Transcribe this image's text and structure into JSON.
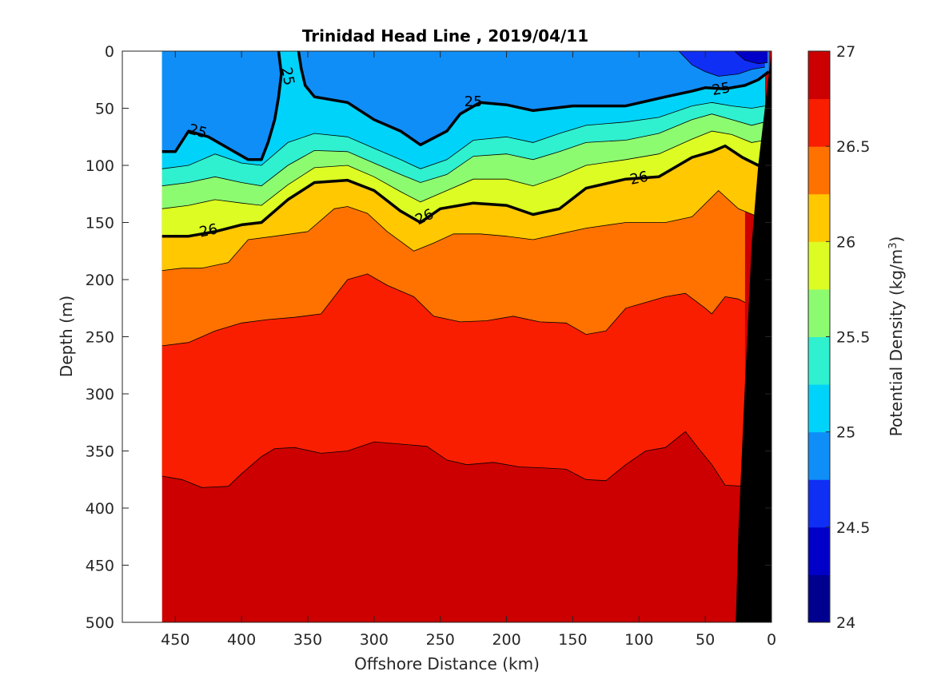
{
  "chart_data": {
    "type": "contour",
    "title": "Trinidad Head Line , 2019/04/11",
    "xlabel": "Offshore Distance (km)",
    "ylabel": "Depth (m)",
    "colorbar_label": "Potential Density (kg/m",
    "colorbar_label_sup": "3",
    "colorbar_label_end": ")",
    "x_reversed": true,
    "y_reversed": true,
    "xlim": [
      0,
      490
    ],
    "ylim": [
      0,
      500
    ],
    "x_ticks": [
      450,
      400,
      350,
      300,
      250,
      200,
      150,
      100,
      50,
      0
    ],
    "y_ticks": [
      0,
      50,
      100,
      150,
      200,
      250,
      300,
      350,
      400,
      450,
      500
    ],
    "colorbar_range": [
      24,
      27
    ],
    "colorbar_ticks": [
      24,
      24.5,
      25,
      25.5,
      26,
      26.5,
      27
    ],
    "contour_levels": [
      24.25,
      24.5,
      24.75,
      25,
      25.25,
      25.5,
      25.75,
      26,
      26.25,
      26.5,
      26.75
    ],
    "level_colors": [
      "#00008f",
      "#0000c8",
      "#0f2ff4",
      "#0f8ef8",
      "#00d3f9",
      "#2ff0cf",
      "#8dfb70",
      "#dcfc23",
      "#ffc800",
      "#ff7200",
      "#f91e00",
      "#cc0000"
    ],
    "bathymetry_color": "#000000",
    "section_x_range_km": [
      0,
      460
    ],
    "labeled_isopycnals": [
      {
        "value": 25,
        "label": "25",
        "depth_profile": [
          [
            460,
            88
          ],
          [
            450,
            88
          ],
          [
            440,
            70
          ],
          [
            425,
            75
          ],
          [
            410,
            85
          ],
          [
            395,
            95
          ],
          [
            385,
            95
          ],
          [
            380,
            80
          ],
          [
            375,
            60
          ],
          [
            372,
            40
          ],
          [
            370,
            20
          ],
          [
            372,
            0
          ]
        ]
      },
      {
        "value": 25,
        "label": "25",
        "depth_profile": [
          [
            357,
            0
          ],
          [
            355,
            15
          ],
          [
            352,
            30
          ],
          [
            345,
            40
          ],
          [
            320,
            45
          ],
          [
            300,
            60
          ],
          [
            280,
            70
          ],
          [
            265,
            82
          ],
          [
            245,
            70
          ],
          [
            235,
            55
          ],
          [
            220,
            45
          ],
          [
            200,
            47
          ],
          [
            180,
            52
          ],
          [
            150,
            48
          ],
          [
            110,
            48
          ],
          [
            80,
            40
          ],
          [
            60,
            35
          ],
          [
            50,
            32
          ],
          [
            35,
            33
          ],
          [
            20,
            30
          ],
          [
            10,
            25
          ],
          [
            2,
            18
          ]
        ]
      },
      {
        "value": 26,
        "label": "26",
        "depth_profile": [
          [
            460,
            162
          ],
          [
            440,
            162
          ],
          [
            420,
            158
          ],
          [
            400,
            152
          ],
          [
            385,
            150
          ],
          [
            365,
            130
          ],
          [
            345,
            115
          ],
          [
            320,
            113
          ],
          [
            300,
            122
          ],
          [
            280,
            140
          ],
          [
            265,
            150
          ],
          [
            250,
            138
          ],
          [
            225,
            133
          ],
          [
            200,
            135
          ],
          [
            180,
            143
          ],
          [
            160,
            138
          ],
          [
            140,
            120
          ],
          [
            110,
            112
          ],
          [
            85,
            110
          ],
          [
            60,
            93
          ],
          [
            45,
            88
          ],
          [
            35,
            83
          ],
          [
            22,
            93
          ],
          [
            10,
            100
          ],
          [
            5,
            96
          ]
        ]
      }
    ],
    "isopycnal_depth_profiles": [
      {
        "value": 24.75,
        "depth_profile": [
          [
            70,
            0
          ],
          [
            60,
            12
          ],
          [
            50,
            18
          ],
          [
            40,
            22
          ],
          [
            25,
            20
          ],
          [
            15,
            16
          ],
          [
            5,
            14
          ]
        ]
      },
      {
        "value": 24.5,
        "depth_profile": [
          [
            28,
            0
          ],
          [
            20,
            8
          ],
          [
            10,
            11
          ],
          [
            3,
            10
          ]
        ]
      },
      {
        "value": 25.25,
        "depth_profile": [
          [
            460,
            103
          ],
          [
            440,
            100
          ],
          [
            420,
            90
          ],
          [
            400,
            98
          ],
          [
            385,
            100
          ],
          [
            365,
            80
          ],
          [
            345,
            72
          ],
          [
            320,
            75
          ],
          [
            300,
            85
          ],
          [
            280,
            95
          ],
          [
            265,
            103
          ],
          [
            245,
            95
          ],
          [
            225,
            78
          ],
          [
            200,
            75
          ],
          [
            180,
            80
          ],
          [
            160,
            72
          ],
          [
            140,
            65
          ],
          [
            110,
            62
          ],
          [
            85,
            58
          ],
          [
            60,
            48
          ],
          [
            45,
            45
          ],
          [
            30,
            48
          ],
          [
            15,
            50
          ],
          [
            5,
            48
          ]
        ]
      },
      {
        "value": 25.5,
        "depth_profile": [
          [
            460,
            118
          ],
          [
            440,
            115
          ],
          [
            420,
            110
          ],
          [
            400,
            115
          ],
          [
            385,
            118
          ],
          [
            365,
            100
          ],
          [
            345,
            87
          ],
          [
            320,
            88
          ],
          [
            300,
            98
          ],
          [
            280,
            108
          ],
          [
            265,
            115
          ],
          [
            245,
            108
          ],
          [
            225,
            92
          ],
          [
            200,
            90
          ],
          [
            180,
            95
          ],
          [
            160,
            88
          ],
          [
            140,
            80
          ],
          [
            110,
            78
          ],
          [
            85,
            72
          ],
          [
            60,
            60
          ],
          [
            45,
            55
          ],
          [
            30,
            60
          ],
          [
            15,
            65
          ],
          [
            5,
            62
          ]
        ]
      },
      {
        "value": 25.75,
        "depth_profile": [
          [
            460,
            138
          ],
          [
            440,
            135
          ],
          [
            420,
            130
          ],
          [
            400,
            133
          ],
          [
            385,
            135
          ],
          [
            365,
            117
          ],
          [
            345,
            102
          ],
          [
            320,
            100
          ],
          [
            300,
            110
          ],
          [
            280,
            123
          ],
          [
            265,
            132
          ],
          [
            245,
            122
          ],
          [
            225,
            112
          ],
          [
            200,
            112
          ],
          [
            180,
            118
          ],
          [
            160,
            110
          ],
          [
            140,
            100
          ],
          [
            110,
            95
          ],
          [
            85,
            90
          ],
          [
            60,
            77
          ],
          [
            45,
            70
          ],
          [
            30,
            73
          ],
          [
            15,
            80
          ],
          [
            5,
            78
          ]
        ]
      },
      {
        "value": 26.25,
        "depth_profile": [
          [
            460,
            192
          ],
          [
            445,
            190
          ],
          [
            430,
            190
          ],
          [
            410,
            185
          ],
          [
            395,
            165
          ],
          [
            375,
            162
          ],
          [
            350,
            158
          ],
          [
            330,
            138
          ],
          [
            320,
            136
          ],
          [
            305,
            142
          ],
          [
            290,
            158
          ],
          [
            270,
            175
          ],
          [
            255,
            168
          ],
          [
            240,
            160
          ],
          [
            220,
            160
          ],
          [
            200,
            162
          ],
          [
            180,
            165
          ],
          [
            160,
            160
          ],
          [
            140,
            155
          ],
          [
            110,
            150
          ],
          [
            80,
            150
          ],
          [
            60,
            145
          ],
          [
            40,
            122
          ],
          [
            25,
            138
          ],
          [
            10,
            145
          ]
        ]
      },
      {
        "value": 26.5,
        "depth_profile": [
          [
            460,
            258
          ],
          [
            440,
            255
          ],
          [
            420,
            245
          ],
          [
            400,
            238
          ],
          [
            380,
            235
          ],
          [
            360,
            233
          ],
          [
            340,
            230
          ],
          [
            320,
            200
          ],
          [
            305,
            195
          ],
          [
            290,
            205
          ],
          [
            270,
            215
          ],
          [
            255,
            232
          ],
          [
            235,
            237
          ],
          [
            215,
            236
          ],
          [
            195,
            232
          ],
          [
            175,
            237
          ],
          [
            155,
            238
          ],
          [
            140,
            248
          ],
          [
            125,
            245
          ],
          [
            110,
            225
          ],
          [
            80,
            215
          ],
          [
            65,
            212
          ],
          [
            50,
            225
          ],
          [
            45,
            230
          ],
          [
            35,
            215
          ],
          [
            25,
            217
          ],
          [
            20,
            220
          ]
        ]
      },
      {
        "value": 26.75,
        "depth_profile": [
          [
            460,
            372
          ],
          [
            445,
            375
          ],
          [
            430,
            382
          ],
          [
            410,
            381
          ],
          [
            400,
            370
          ],
          [
            385,
            355
          ],
          [
            375,
            348
          ],
          [
            360,
            347
          ],
          [
            340,
            352
          ],
          [
            320,
            350
          ],
          [
            300,
            342
          ],
          [
            280,
            344
          ],
          [
            260,
            346
          ],
          [
            245,
            358
          ],
          [
            230,
            362
          ],
          [
            210,
            360
          ],
          [
            190,
            364
          ],
          [
            170,
            365
          ],
          [
            155,
            366
          ],
          [
            140,
            375
          ],
          [
            125,
            376
          ],
          [
            110,
            362
          ],
          [
            95,
            350
          ],
          [
            80,
            347
          ],
          [
            65,
            333
          ],
          [
            55,
            348
          ],
          [
            45,
            362
          ],
          [
            35,
            380
          ],
          [
            20,
            381
          ]
        ]
      }
    ],
    "bathymetry_profile": [
      [
        0,
        0
      ],
      [
        5,
        50
      ],
      [
        10,
        100
      ],
      [
        15,
        170
      ],
      [
        20,
        290
      ],
      [
        25,
        420
      ],
      [
        27,
        500
      ]
    ],
    "contour_label_positions": [
      {
        "label": "25",
        "x": 433,
        "y": 70,
        "angle": 15
      },
      {
        "label": "25",
        "x": 365,
        "y": 22,
        "angle": 80
      },
      {
        "label": "25",
        "x": 225,
        "y": 44,
        "angle": 0
      },
      {
        "label": "25",
        "x": 38,
        "y": 33,
        "angle": -10
      },
      {
        "label": "26",
        "x": 425,
        "y": 157,
        "angle": -12
      },
      {
        "label": "26",
        "x": 262,
        "y": 145,
        "angle": -25
      },
      {
        "label": "26",
        "x": 100,
        "y": 111,
        "angle": -12
      }
    ]
  }
}
